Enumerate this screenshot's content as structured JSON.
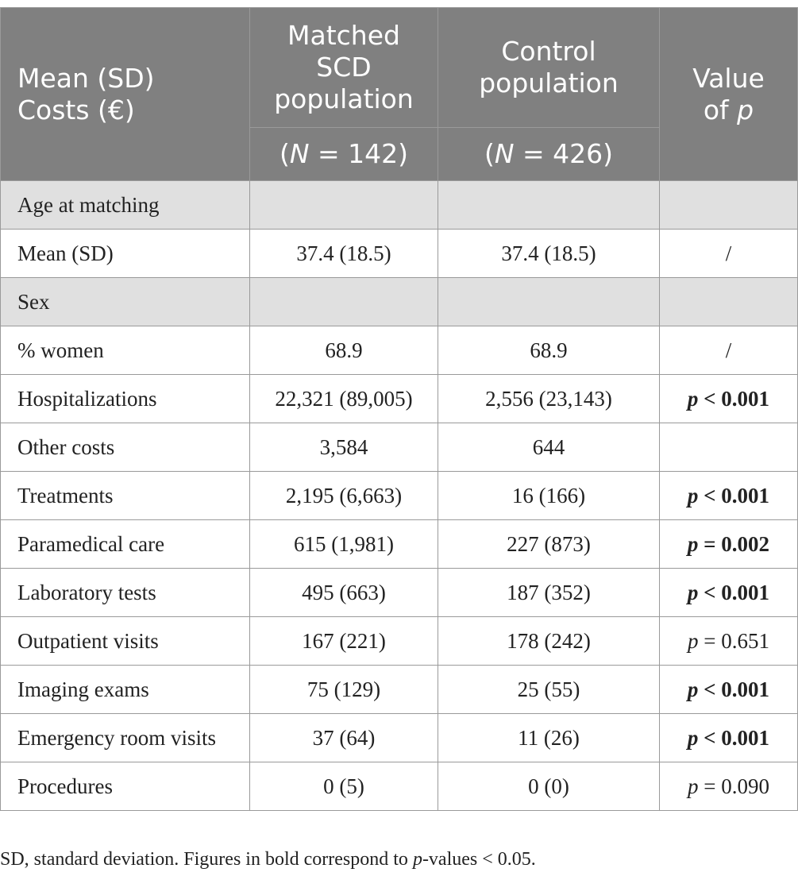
{
  "header": {
    "col1_line1": "Mean (SD)",
    "col1_line2": "Costs (€)",
    "col2_line1": "Matched",
    "col2_line2": "SCD",
    "col2_line3": "population",
    "col2_n_prefix": "(",
    "col2_n_var": "N",
    "col2_n_rest": " = 142)",
    "col3_line1": "Control",
    "col3_line2": "population",
    "col3_n_prefix": "(",
    "col3_n_var": "N",
    "col3_n_rest": " = 426)",
    "col4_line1": "Value",
    "col4_line2_a": "of ",
    "col4_line2_p": "p"
  },
  "rows": [
    {
      "type": "section",
      "label": "Age at matching"
    },
    {
      "type": "data",
      "label": "Mean (SD)",
      "scd": "37.4 (18.5)",
      "control": "37.4 (18.5)",
      "p": "/",
      "p_is_p": false,
      "bold": false
    },
    {
      "type": "section",
      "label": "Sex"
    },
    {
      "type": "data",
      "label": "% women",
      "scd": "68.9",
      "control": "68.9",
      "p": "/",
      "p_is_p": false,
      "bold": false
    },
    {
      "type": "data",
      "label": "Hospitalizations",
      "scd": "22,321 (89,005)",
      "control": "2,556 (23,143)",
      "p": " < 0.001",
      "p_is_p": true,
      "bold": true
    },
    {
      "type": "data",
      "label": "Other costs",
      "scd": "3,584",
      "control": "644",
      "p": "",
      "p_is_p": false,
      "bold": false
    },
    {
      "type": "data",
      "label": "Treatments",
      "scd": "2,195 (6,663)",
      "control": "16 (166)",
      "p": " < 0.001",
      "p_is_p": true,
      "bold": true
    },
    {
      "type": "data",
      "label": "Paramedical care",
      "scd": "615 (1,981)",
      "control": "227 (873)",
      "p": " = 0.002",
      "p_is_p": true,
      "bold": true
    },
    {
      "type": "data",
      "label": "Laboratory tests",
      "scd": "495 (663)",
      "control": "187 (352)",
      "p": " < 0.001",
      "p_is_p": true,
      "bold": true
    },
    {
      "type": "data",
      "label": "Outpatient visits",
      "scd": "167 (221)",
      "control": "178 (242)",
      "p": " = 0.651",
      "p_is_p": true,
      "bold": false
    },
    {
      "type": "data",
      "label": "Imaging exams",
      "scd": "75 (129)",
      "control": "25 (55)",
      "p": " < 0.001",
      "p_is_p": true,
      "bold": true
    },
    {
      "type": "data",
      "label": "Emergency room visits",
      "scd": "37 (64)",
      "control": "11 (26)",
      "p": " < 0.001",
      "p_is_p": true,
      "bold": true
    },
    {
      "type": "data",
      "label": "Procedures",
      "scd": "0 (5)",
      "control": "0 (0)",
      "p": " = 0.090",
      "p_is_p": true,
      "bold": false
    }
  ],
  "caption": {
    "before": "SD, standard deviation. Figures in bold correspond to ",
    "p": "p",
    "after": "-values < 0.05."
  },
  "p_letter": "p"
}
